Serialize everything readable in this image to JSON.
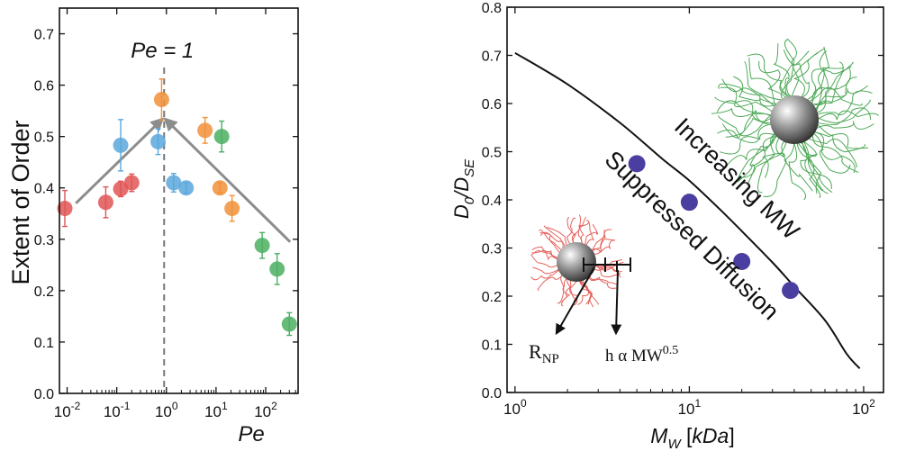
{
  "chart_data": [
    {
      "type": "scatter",
      "xscale": "log",
      "xlim": [
        0.007,
        450
      ],
      "ylim": [
        0,
        0.75
      ],
      "xlabel": "Pe",
      "ylabel": "Extent of Order",
      "xticks": [
        {
          "value": 0.01,
          "base": "10",
          "exp": "-2"
        },
        {
          "value": 0.1,
          "base": "10",
          "exp": "-1"
        },
        {
          "value": 1,
          "base": "10",
          "exp": "0"
        },
        {
          "value": 10,
          "base": "10",
          "exp": "1"
        },
        {
          "value": 100,
          "base": "10",
          "exp": "2"
        }
      ],
      "yticks": [
        "0.0",
        "0.1",
        "0.2",
        "0.3",
        "0.4",
        "0.5",
        "0.6",
        "0.7"
      ],
      "annotation": {
        "text": "Pe = 1",
        "x": 0.9
      },
      "arrows": [
        {
          "from": [
            0.015,
            0.37
          ],
          "to": [
            0.75,
            0.53
          ]
        },
        {
          "from": [
            310,
            0.295
          ],
          "to": [
            1.05,
            0.53
          ]
        }
      ],
      "series": [
        {
          "name": "red",
          "color": "#e05555",
          "points": [
            {
              "x": 0.009,
              "y": 0.36,
              "err": 0.035
            },
            {
              "x": 0.06,
              "y": 0.372,
              "err": 0.03
            },
            {
              "x": 0.12,
              "y": 0.398,
              "err": 0.015
            },
            {
              "x": 0.2,
              "y": 0.41,
              "err": 0.017
            }
          ]
        },
        {
          "name": "blue",
          "color": "#5aa7dc",
          "points": [
            {
              "x": 0.12,
              "y": 0.483,
              "err": 0.05
            },
            {
              "x": 0.68,
              "y": 0.49,
              "err": 0.025
            },
            {
              "x": 1.4,
              "y": 0.41,
              "err": 0.018
            },
            {
              "x": 2.5,
              "y": 0.4,
              "err": 0.01
            }
          ]
        },
        {
          "name": "orange",
          "color": "#f0913a",
          "points": [
            {
              "x": 0.8,
              "y": 0.572,
              "err": 0.04
            },
            {
              "x": 6,
              "y": 0.512,
              "err": 0.025
            },
            {
              "x": 12,
              "y": 0.4,
              "err": 0.01
            },
            {
              "x": 21,
              "y": 0.36,
              "err": 0.025
            }
          ]
        },
        {
          "name": "green",
          "color": "#4caf62",
          "points": [
            {
              "x": 13,
              "y": 0.5,
              "err": 0.03
            },
            {
              "x": 85,
              "y": 0.288,
              "err": 0.025
            },
            {
              "x": 170,
              "y": 0.242,
              "err": 0.03
            },
            {
              "x": 300,
              "y": 0.135,
              "err": 0.022
            }
          ]
        }
      ]
    },
    {
      "type": "line",
      "xscale": "log",
      "xlim": [
        0.9,
        130
      ],
      "ylim": [
        0,
        0.8
      ],
      "xlabel": {
        "main": "M",
        "sub": "W",
        "unit": "[kDa]"
      },
      "ylabel": {
        "d": "D",
        "d_sub": "0",
        "se": "/D",
        "se_sub": "SE"
      },
      "xticks": [
        {
          "value": 1,
          "base": "10",
          "exp": "0"
        },
        {
          "value": 10,
          "base": "10",
          "exp": "1"
        },
        {
          "value": 100,
          "base": "10",
          "exp": "2"
        }
      ],
      "yticks": [
        "0.0",
        "0.1",
        "0.2",
        "0.3",
        "0.4",
        "0.5",
        "0.6",
        "0.7",
        "0.8"
      ],
      "curve": {
        "x": [
          1,
          2,
          4,
          7,
          10,
          15,
          20,
          30,
          40,
          60,
          80,
          95
        ],
        "y": [
          0.705,
          0.64,
          0.56,
          0.485,
          0.44,
          0.38,
          0.335,
          0.27,
          0.22,
          0.15,
          0.08,
          0.05
        ]
      },
      "points": {
        "color": "#4a3fa0",
        "data": [
          {
            "x": 5,
            "y": 0.475
          },
          {
            "x": 10,
            "y": 0.395
          },
          {
            "x": 20,
            "y": 0.272
          },
          {
            "x": 38,
            "y": 0.212
          }
        ]
      },
      "annotations": [
        "Increasing MW",
        "Suppressed Diffusion"
      ],
      "labels": {
        "rnp": {
          "main": "R",
          "sub": "NP"
        },
        "h": {
          "main": "h α MW",
          "sup": "0.5"
        }
      }
    }
  ]
}
